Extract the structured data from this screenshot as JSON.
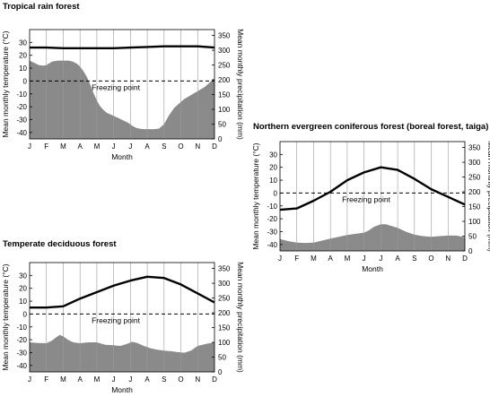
{
  "chart_data": [
    {
      "type": "line",
      "title": "Tropical rain forest",
      "xlabel": "Month",
      "ylabel_left": "Mean monthly temperature (°C)",
      "ylabel_right": "Mean monthly precipitation (mm)",
      "categories": [
        "J",
        "F",
        "M",
        "A",
        "M",
        "J",
        "J",
        "A",
        "S",
        "O",
        "N",
        "D"
      ],
      "temp_ylim": [
        -45,
        40
      ],
      "temp_ticks": [
        "30",
        "20",
        "10",
        "0",
        "-10",
        "-20",
        "-30",
        "-40"
      ],
      "temp_tick_values": [
        30,
        20,
        10,
        0,
        -10,
        -20,
        -30,
        -40
      ],
      "precip_ylim": [
        0,
        370
      ],
      "precip_ticks": [
        "350",
        "300",
        "250",
        "200",
        "150",
        "100",
        "50",
        "0"
      ],
      "precip_tick_values": [
        350,
        300,
        250,
        200,
        150,
        100,
        50,
        0
      ],
      "freezing_label": "Freezing point",
      "temperature": [
        26,
        26,
        25.5,
        25.5,
        25.5,
        25.5,
        26,
        26.5,
        27,
        27,
        27,
        26
      ],
      "precipitation_x": [
        0,
        0.25,
        0.55,
        0.8,
        1,
        1.35,
        1.7,
        2,
        2.3,
        2.55,
        2.8,
        3,
        3.2,
        3.4,
        3.6,
        3.8,
        4,
        4.2,
        4.4,
        4.6,
        4.8,
        5,
        5.3,
        5.6,
        5.85,
        6.1,
        6.35,
        6.6,
        6.85,
        7,
        7.2,
        7.4,
        7.7,
        8,
        8.3,
        8.6,
        8.9,
        9.2,
        9.5,
        9.8,
        10.1,
        10.4,
        10.7,
        11
      ],
      "precipitation": [
        265,
        258,
        250,
        248,
        250,
        262,
        265,
        265,
        265,
        262,
        255,
        245,
        230,
        210,
        185,
        155,
        130,
        110,
        98,
        88,
        83,
        78,
        70,
        62,
        55,
        45,
        37,
        34,
        33,
        33,
        33,
        33,
        35,
        50,
        80,
        105,
        120,
        135,
        145,
        155,
        165,
        175,
        190,
        205
      ]
    },
    {
      "type": "line",
      "title": "Northern evergreen coniferous forest (boreal forest, taiga)",
      "xlabel": "Month",
      "ylabel_left": "Mean monthly temperature (°C)",
      "ylabel_right": "Mean monthly precipitation (mm)",
      "categories": [
        "J",
        "F",
        "M",
        "A",
        "M",
        "J",
        "J",
        "A",
        "S",
        "O",
        "N",
        "D"
      ],
      "temp_ylim": [
        -45,
        40
      ],
      "temp_ticks": [
        "30",
        "20",
        "10",
        "0",
        "-10",
        "-20",
        "-30",
        "-40"
      ],
      "temp_tick_values": [
        30,
        20,
        10,
        0,
        -10,
        -20,
        -30,
        -40
      ],
      "precip_ylim": [
        0,
        370
      ],
      "precip_ticks": [
        "350",
        "300",
        "250",
        "200",
        "150",
        "100",
        "50",
        "0"
      ],
      "precip_tick_values": [
        350,
        300,
        250,
        200,
        150,
        100,
        50,
        0
      ],
      "freezing_label": "Freezing point",
      "temperature": [
        -13,
        -12,
        -6,
        1,
        10,
        16,
        20,
        18,
        11,
        3,
        -3,
        -9
      ],
      "precipitation_x": [
        0,
        0.5,
        1,
        1.5,
        2,
        2.5,
        3,
        3.5,
        4,
        4.5,
        5,
        5.3,
        5.6,
        6,
        6.3,
        6.6,
        7,
        7.5,
        8,
        8.5,
        9,
        9.5,
        10,
        10.5,
        11
      ],
      "precipitation": [
        40,
        33,
        28,
        27,
        28,
        35,
        42,
        48,
        54,
        58,
        62,
        70,
        82,
        90,
        90,
        85,
        78,
        65,
        55,
        50,
        48,
        50,
        52,
        52,
        46
      ]
    },
    {
      "type": "line",
      "title": "Temperate deciduous forest",
      "xlabel": "Month",
      "ylabel_left": "Mean monthly temperature (°C)",
      "ylabel_right": "Mean monthly precipitation (mm)",
      "categories": [
        "J",
        "F",
        "M",
        "A",
        "M",
        "J",
        "J",
        "A",
        "S",
        "O",
        "N",
        "D"
      ],
      "temp_ylim": [
        -45,
        40
      ],
      "temp_ticks": [
        "30",
        "20",
        "10",
        "0",
        "-10",
        "-20",
        "-30",
        "-40"
      ],
      "temp_tick_values": [
        30,
        20,
        10,
        0,
        -10,
        -20,
        -30,
        -40
      ],
      "precip_ylim": [
        0,
        370
      ],
      "precip_ticks": [
        "350",
        "300",
        "250",
        "200",
        "150",
        "100",
        "50",
        "0"
      ],
      "precip_tick_values": [
        350,
        300,
        250,
        200,
        150,
        100,
        50,
        0
      ],
      "freezing_label": "Freezing point",
      "temperature": [
        5,
        5,
        6,
        12,
        17,
        22,
        26,
        29,
        28,
        23,
        16,
        9
      ],
      "precipitation_x": [
        0,
        0.5,
        1,
        1.3,
        1.6,
        1.8,
        2,
        2.3,
        2.6,
        3,
        3.5,
        4,
        4.5,
        5,
        5.4,
        5.8,
        6.1,
        6.4,
        6.8,
        7.2,
        7.6,
        8,
        8.4,
        8.8,
        9.2,
        9.6,
        10,
        10.5,
        11
      ],
      "precipitation": [
        100,
        98,
        97,
        105,
        118,
        125,
        120,
        108,
        100,
        97,
        100,
        100,
        92,
        90,
        88,
        95,
        102,
        98,
        88,
        80,
        75,
        72,
        70,
        67,
        65,
        72,
        88,
        95,
        100
      ]
    }
  ]
}
